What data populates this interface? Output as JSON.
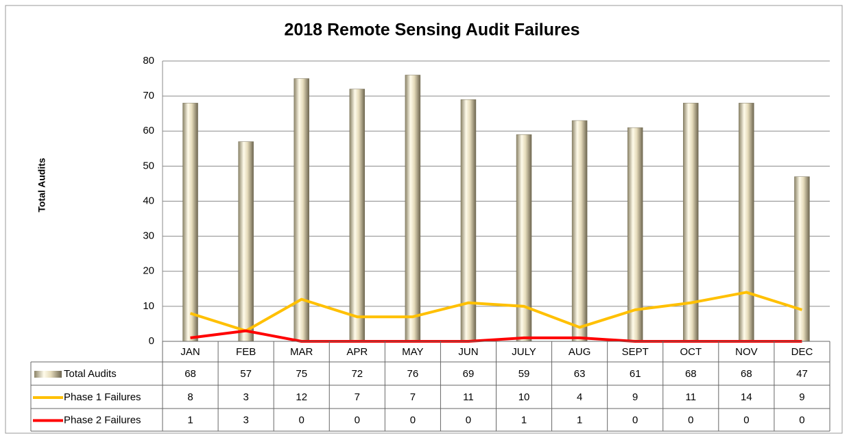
{
  "chart_data": {
    "type": "bar",
    "title": "2018 Remote Sensing Audit Failures",
    "y_label": "Total Audits",
    "categories": [
      "JAN",
      "FEB",
      "MAR",
      "APR",
      "MAY",
      "JUN",
      "JULY",
      "AUG",
      "SEPT",
      "OCT",
      "NOV",
      "DEC"
    ],
    "series": [
      {
        "name": "Total Audits",
        "type": "bar",
        "color": "#d9d0b0",
        "values": [
          68,
          57,
          75,
          72,
          76,
          69,
          59,
          63,
          61,
          68,
          68,
          47
        ]
      },
      {
        "name": "Phase 1 Failures",
        "type": "line",
        "color": "#ffc000",
        "values": [
          8,
          3,
          12,
          7,
          7,
          11,
          10,
          4,
          9,
          11,
          14,
          9
        ]
      },
      {
        "name": "Phase 2 Failures",
        "type": "line",
        "color": "#ff0000",
        "values": [
          1,
          3,
          0,
          0,
          0,
          0,
          1,
          1,
          0,
          0,
          0,
          0
        ]
      }
    ],
    "ylim": [
      0,
      80
    ],
    "yticks": [
      0,
      10,
      20,
      30,
      40,
      50,
      60,
      70,
      80
    ],
    "grid": true,
    "data_table": true
  }
}
